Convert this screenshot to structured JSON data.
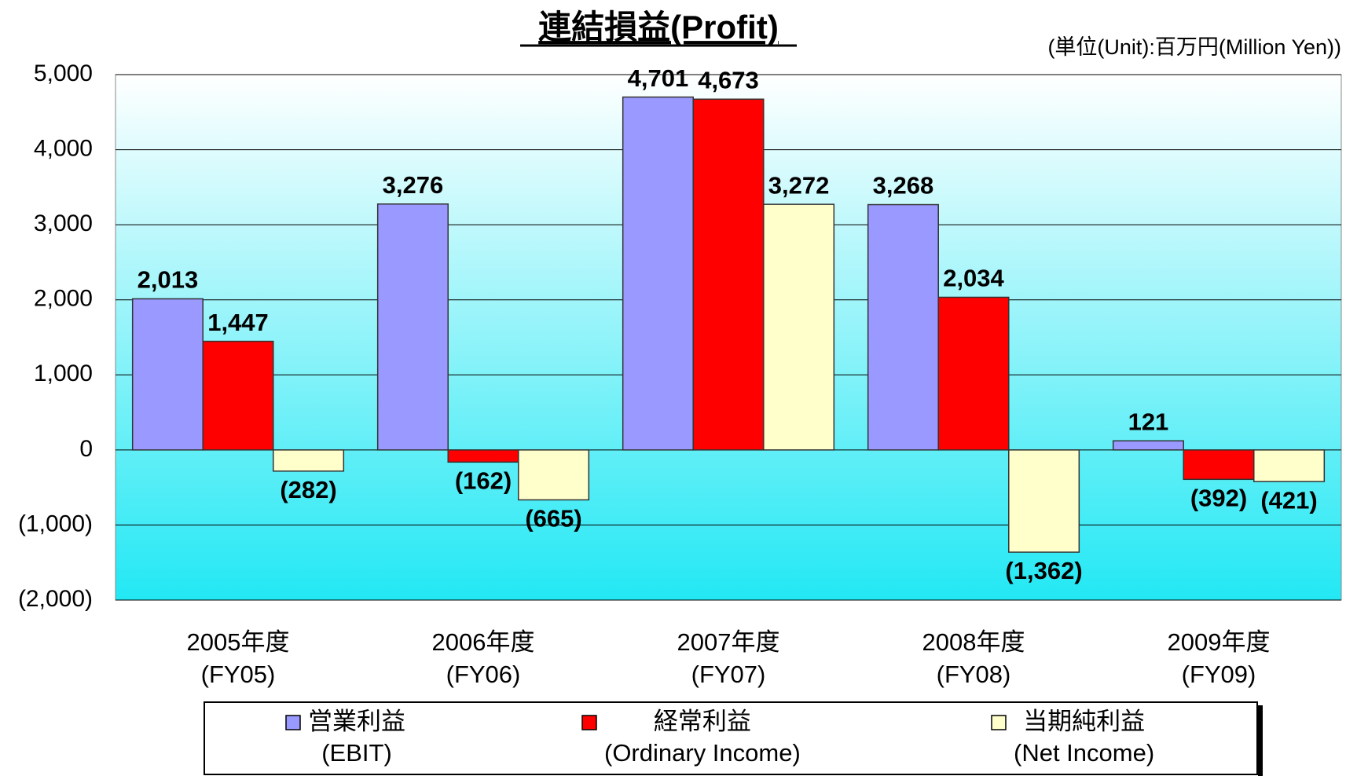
{
  "chart_data": {
    "type": "bar",
    "title": "連結損益(Profit)",
    "subtitle": "(単位(Unit):百万円(Million Yen))",
    "categories": [
      "2005年度\n(FY05)",
      "2006年度\n(FY06)",
      "2007年度\n(FY07)",
      "2008年度\n(FY08)",
      "2009年度\n(FY09)"
    ],
    "series": [
      {
        "name": "営業利益\n(EBIT)",
        "color": "#9999ff",
        "values": [
          2013,
          3276,
          4701,
          3268,
          121
        ],
        "value_labels": [
          "2,013",
          "3,276",
          "4,701",
          "3,268",
          "121"
        ]
      },
      {
        "name": "経常利益\n(Ordinary Income)",
        "color": "#ff0000",
        "values": [
          1447,
          -162,
          4673,
          2034,
          -392
        ],
        "value_labels": [
          "1,447",
          "(162)",
          "4,673",
          "2,034",
          "(392)"
        ]
      },
      {
        "name": "当期純利益\n(Net Income)",
        "color": "#ffffcc",
        "values": [
          -282,
          -665,
          3272,
          -1362,
          -421
        ],
        "value_labels": [
          "(282)",
          "(665)",
          "3,272",
          "(1,362)",
          "(421)"
        ]
      }
    ],
    "ylim": [
      -2000,
      5000
    ],
    "yticks": [
      {
        "value": -2000,
        "label": "(2,000)"
      },
      {
        "value": -1000,
        "label": "(1,000)"
      },
      0,
      {
        "value": 1000,
        "label": "1,000"
      },
      {
        "value": 2000,
        "label": "2,000"
      },
      {
        "value": 3000,
        "label": "3,000"
      },
      {
        "value": 4000,
        "label": "4,000"
      },
      {
        "value": 5000,
        "label": "5,000"
      }
    ],
    "grid": true,
    "legend": "bottom"
  }
}
